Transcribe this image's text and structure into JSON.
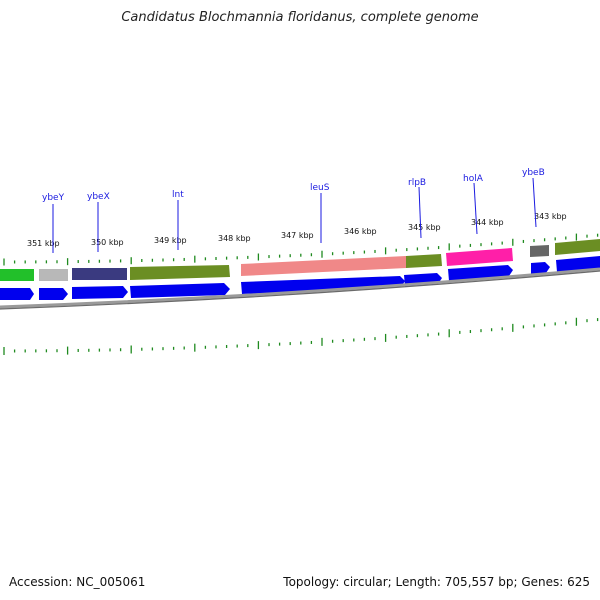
{
  "title": "Candidatus Blochmannia floridanus, complete genome",
  "footer": {
    "accession": "Accession: NC_005061",
    "summary": "Topology: circular; Length: 705,557 bp; Genes: 625"
  },
  "scale_labels": [
    "351 kbp",
    "350 kbp",
    "349 kbp",
    "348 kbp",
    "347 kbp",
    "346 kbp",
    "345 kbp",
    "344 kbp",
    "343 kbp"
  ],
  "gene_labels": [
    "ybeY",
    "ybeX",
    "lnt",
    "leuS",
    "rlpB",
    "holA",
    "ybeB"
  ],
  "colors": {
    "gene_label": "#1a1ae0",
    "tick": "#1f8a1f",
    "cds_arrow": "#0000ee",
    "backbone": "#777777"
  }
}
